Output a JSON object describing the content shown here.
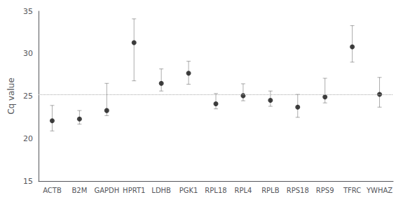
{
  "chart_data": {
    "type": "scatter",
    "categories": [
      "ACTB",
      "B2M",
      "GAPDH",
      "HPRT1",
      "LDHB",
      "PGK1",
      "RPL18",
      "RPL4",
      "RPLB",
      "RPS18",
      "RPS9",
      "TFRC",
      "YWHAZ"
    ],
    "values": [
      22.1,
      22.3,
      23.3,
      31.3,
      26.5,
      27.7,
      24.1,
      25.05,
      24.5,
      23.7,
      24.9,
      30.8,
      25.2
    ],
    "err_upper": [
      1.8,
      1.0,
      3.2,
      2.8,
      1.7,
      1.4,
      1.2,
      1.4,
      1.1,
      1.5,
      2.2,
      2.5,
      2.0
    ],
    "err_lower": [
      1.2,
      0.6,
      0.6,
      4.5,
      0.9,
      1.3,
      0.6,
      0.6,
      0.7,
      1.2,
      0.7,
      1.8,
      1.5
    ],
    "reference_line": {
      "y": 25.2,
      "color": "#aaaaaa",
      "line_style": "dotted"
    },
    "color": "#111111",
    "marker": "circle",
    "ylabel": "Cq value",
    "ylim": [
      15,
      35
    ],
    "yticks": [
      15,
      20,
      25,
      30,
      35
    ],
    "grid": false
  }
}
